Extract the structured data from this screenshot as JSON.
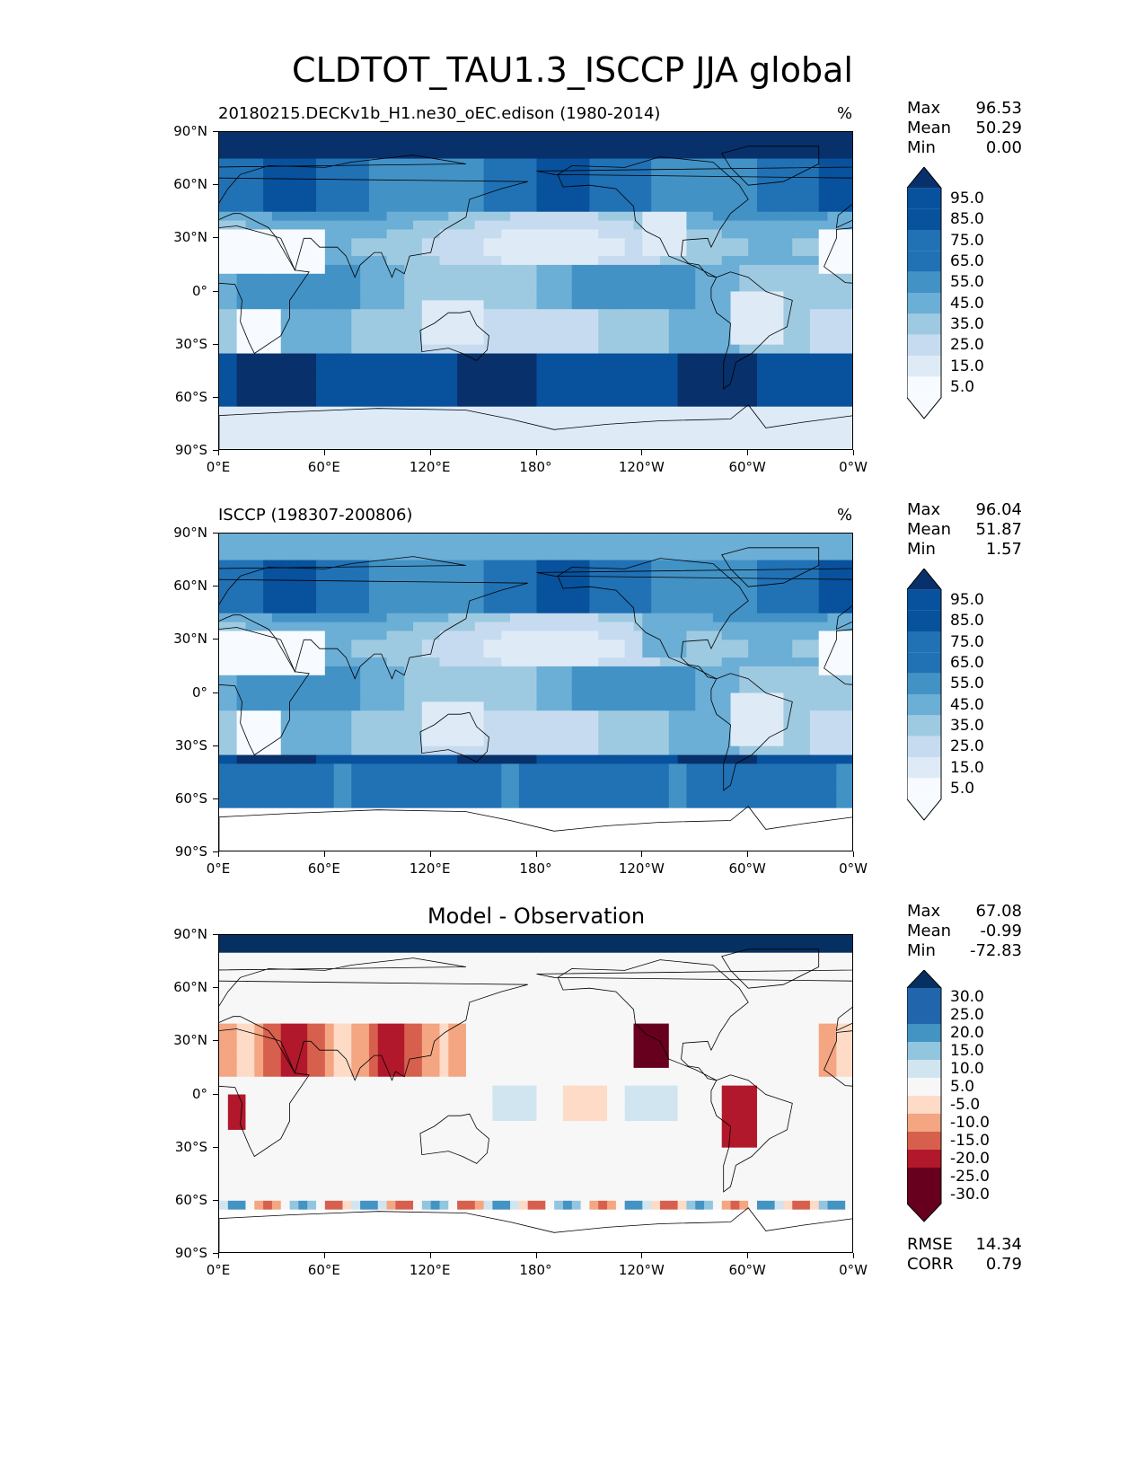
{
  "figure_title": "CLDTOT_TAU1.3_ISCCP JJA global",
  "chart_data": [
    {
      "type": "heatmap",
      "title": "20180215.DECKv1b_H1.ne30_oEC.edison (1980-2014)",
      "units": "%",
      "stats": {
        "max": "96.53",
        "mean": "50.29",
        "min": "0.00"
      },
      "colorbar_levels": [
        "95.0",
        "85.0",
        "75.0",
        "65.0",
        "55.0",
        "45.0",
        "35.0",
        "25.0",
        "15.0",
        "5.0"
      ],
      "colormap": "Blues"
    },
    {
      "type": "heatmap",
      "title": "ISCCP (198307-200806)",
      "units": "%",
      "stats": {
        "max": "96.04",
        "mean": "51.87",
        "min": "1.57"
      },
      "colorbar_levels": [
        "95.0",
        "85.0",
        "75.0",
        "65.0",
        "55.0",
        "45.0",
        "35.0",
        "25.0",
        "15.0",
        "5.0"
      ],
      "colormap": "Blues"
    },
    {
      "type": "heatmap",
      "title": "Model - Observation",
      "units": "",
      "stats": {
        "max": "67.08",
        "mean": "-0.99",
        "min": "-72.83",
        "rmse": "14.34",
        "corr": "0.79"
      },
      "colorbar_levels": [
        "30.0",
        "25.0",
        "20.0",
        "15.0",
        "10.0",
        "5.0",
        "-5.0",
        "-10.0",
        "-15.0",
        "-20.0",
        "-25.0",
        "-30.0"
      ],
      "colormap": "RdBu"
    }
  ],
  "axes": {
    "lat_ticks": [
      "90°N",
      "60°N",
      "30°N",
      "0°",
      "30°S",
      "60°S",
      "90°S"
    ],
    "lon_ticks": [
      "0°E",
      "60°E",
      "120°E",
      "180°",
      "120°W",
      "60°W",
      "0°W"
    ]
  },
  "stat_labels": {
    "max": "Max",
    "mean": "Mean",
    "min": "Min",
    "rmse": "RMSE",
    "corr": "CORR"
  },
  "colors": {
    "blues": [
      "#f7fbff",
      "#deebf7",
      "#c6dbef",
      "#9ecae1",
      "#6baed6",
      "#4292c6",
      "#2171b5",
      "#08519c",
      "#08306b"
    ],
    "rdbu_pos": [
      "#d1e5f0",
      "#92c5de",
      "#4393c3",
      "#2166ac",
      "#053061"
    ],
    "rdbu_neg": [
      "#fddbc7",
      "#f4a582",
      "#d6604d",
      "#b2182b",
      "#67001f"
    ],
    "neutral": "#f7f7f7"
  }
}
